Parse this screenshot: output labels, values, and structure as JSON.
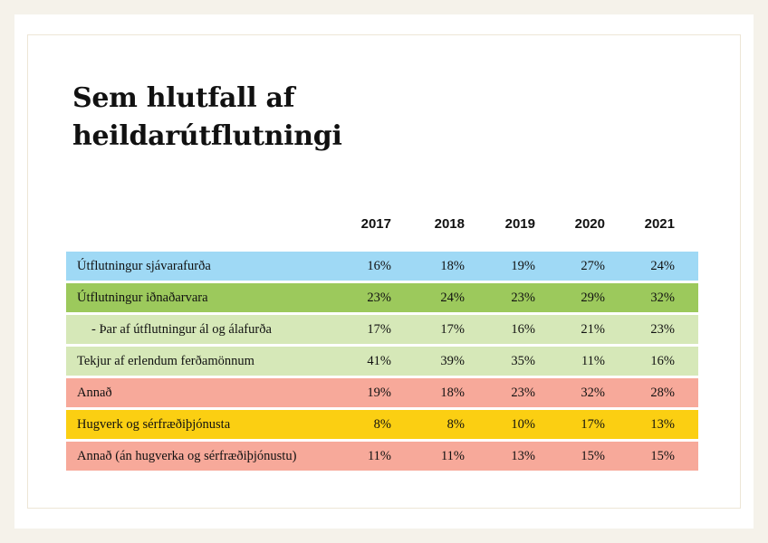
{
  "title_line1": "Sem hlutfall af",
  "title_line2": "heildarútflutningi",
  "chart_data": {
    "type": "table",
    "columns": [
      "2017",
      "2018",
      "2019",
      "2020",
      "2021"
    ],
    "rows": [
      {
        "label": "Útflutningur sjávarafurða",
        "values": [
          "16%",
          "18%",
          "19%",
          "27%",
          "24%"
        ],
        "color": "#9fd9f5"
      },
      {
        "label": "Útflutningur iðnaðarvara",
        "values": [
          "23%",
          "24%",
          "23%",
          "29%",
          "32%"
        ],
        "color": "#9cc95c"
      },
      {
        "label": "- Þar af útflutningur ál og álafurða",
        "values": [
          "17%",
          "17%",
          "16%",
          "21%",
          "23%"
        ],
        "color": "#d6e8b8",
        "indent": true
      },
      {
        "label": "Tekjur af erlendum ferðamönnum",
        "values": [
          "41%",
          "39%",
          "35%",
          "11%",
          "16%"
        ],
        "color": "#d6e8b8"
      },
      {
        "label": "Annað",
        "values": [
          "19%",
          "18%",
          "23%",
          "32%",
          "28%"
        ],
        "color": "#f7a99a"
      },
      {
        "label": "Hugverk og sérfræðiþjónusta",
        "values": [
          "8%",
          "8%",
          "10%",
          "17%",
          "13%"
        ],
        "color": "#fbcf12"
      },
      {
        "label": "Annað (án hugverka og sérfræðiþjónustu)",
        "values": [
          "11%",
          "11%",
          "13%",
          "15%",
          "15%"
        ],
        "color": "#f7a99a"
      }
    ]
  }
}
